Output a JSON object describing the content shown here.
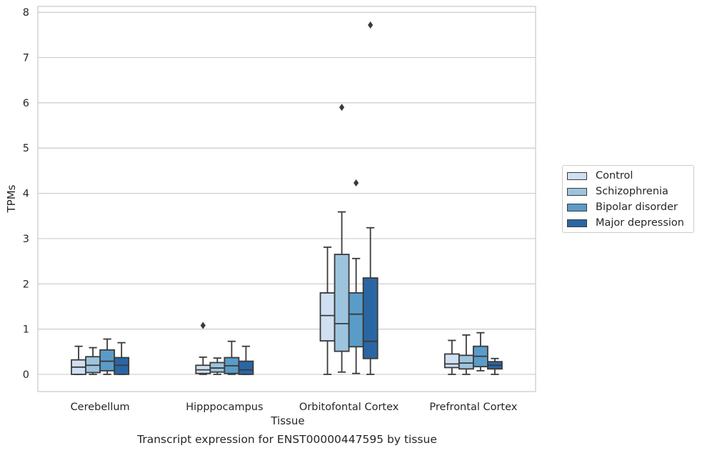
{
  "chart_data": {
    "type": "box",
    "xlabel": "Tissue",
    "ylabel": "TPMs",
    "caption": "Transcript expression for ENST00000447595 by tissue",
    "ylim": [
      -0.38,
      8.13
    ],
    "yticks": [
      0,
      1,
      2,
      3,
      4,
      5,
      6,
      7,
      8
    ],
    "grid": "horizontal",
    "legend_position": "right",
    "categories": [
      "Cerebellum",
      "Hipppocampus",
      "Orbitofontal Cortex",
      "Prefrontal Cortex"
    ],
    "series": [
      {
        "name": "Control",
        "color": "#d0e0f2",
        "boxes": [
          {
            "min": 0.0,
            "q1": 0.0,
            "median": 0.16,
            "q3": 0.32,
            "max": 0.62,
            "outliers": []
          },
          {
            "min": 0.0,
            "q1": 0.02,
            "median": 0.1,
            "q3": 0.2,
            "max": 0.38,
            "outliers": [
              1.08
            ]
          },
          {
            "min": 0.0,
            "q1": 0.74,
            "median": 1.3,
            "q3": 1.8,
            "max": 2.81,
            "outliers": []
          },
          {
            "min": 0.0,
            "q1": 0.15,
            "median": 0.23,
            "q3": 0.45,
            "max": 0.75,
            "outliers": []
          }
        ]
      },
      {
        "name": "Schizophrenia",
        "color": "#9dc4de",
        "boxes": [
          {
            "min": 0.0,
            "q1": 0.04,
            "median": 0.2,
            "q3": 0.39,
            "max": 0.59,
            "outliers": []
          },
          {
            "min": 0.0,
            "q1": 0.05,
            "median": 0.14,
            "q3": 0.26,
            "max": 0.36,
            "outliers": []
          },
          {
            "min": 0.05,
            "q1": 0.51,
            "median": 1.12,
            "q3": 2.65,
            "max": 3.59,
            "outliers": [
              5.9
            ]
          },
          {
            "min": 0.0,
            "q1": 0.12,
            "median": 0.25,
            "q3": 0.42,
            "max": 0.87,
            "outliers": []
          }
        ]
      },
      {
        "name": "Bipolar disorder",
        "color": "#5a9cc8",
        "boxes": [
          {
            "min": 0.0,
            "q1": 0.08,
            "median": 0.29,
            "q3": 0.54,
            "max": 0.78,
            "outliers": []
          },
          {
            "min": 0.0,
            "q1": 0.02,
            "median": 0.19,
            "q3": 0.37,
            "max": 0.73,
            "outliers": []
          },
          {
            "min": 0.02,
            "q1": 0.61,
            "median": 1.33,
            "q3": 1.8,
            "max": 2.56,
            "outliers": [
              4.23
            ]
          },
          {
            "min": 0.08,
            "q1": 0.17,
            "median": 0.4,
            "q3": 0.62,
            "max": 0.92,
            "outliers": []
          }
        ]
      },
      {
        "name": "Major depression",
        "color": "#2a66a4",
        "boxes": [
          {
            "min": 0.0,
            "q1": 0.0,
            "median": 0.2,
            "q3": 0.37,
            "max": 0.7,
            "outliers": []
          },
          {
            "min": 0.0,
            "q1": 0.0,
            "median": 0.1,
            "q3": 0.29,
            "max": 0.62,
            "outliers": []
          },
          {
            "min": 0.0,
            "q1": 0.35,
            "median": 0.73,
            "q3": 2.13,
            "max": 3.24,
            "outliers": [
              7.72
            ]
          },
          {
            "min": 0.0,
            "q1": 0.12,
            "median": 0.2,
            "q3": 0.28,
            "max": 0.35,
            "outliers": []
          }
        ]
      }
    ]
  }
}
